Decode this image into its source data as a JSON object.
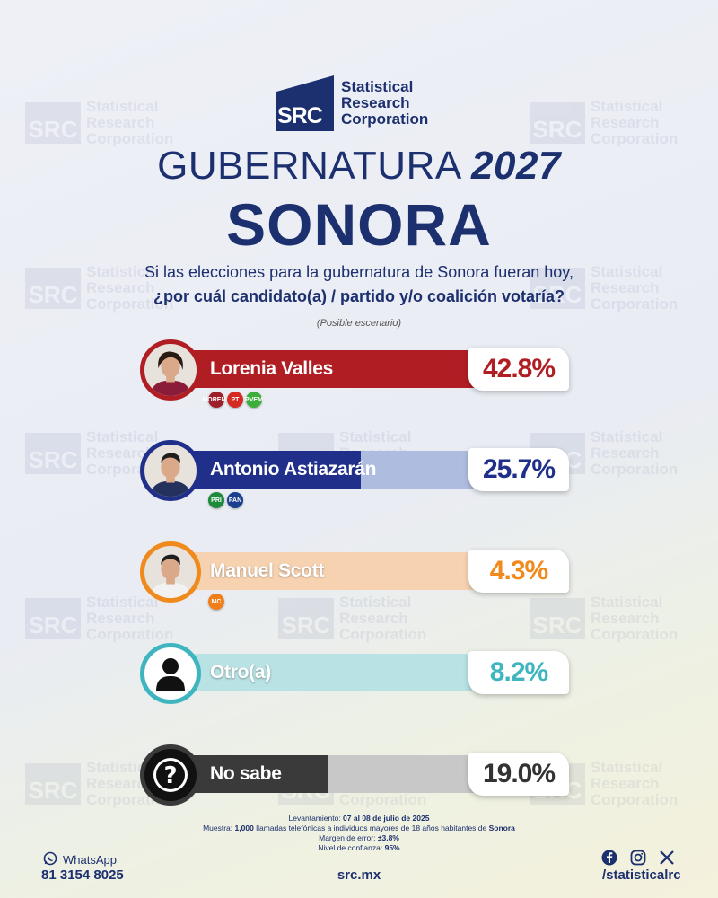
{
  "brand": {
    "logo_initials": "SRC",
    "name_lines": [
      "Statistical",
      "Research",
      "Corporation"
    ],
    "accent_color": "#1c2f6e"
  },
  "header": {
    "title_prefix": "GUBERNATURA",
    "title_year": "2027",
    "state": "SONORA",
    "question_line1": "Si las elecciones para la gubernatura de Sonora fueran hoy,",
    "question_line2": "¿por cuál candidato(a) / partido y/o coalición votaría?",
    "scenario": "(Posible escenario)"
  },
  "chart_data": {
    "type": "bar",
    "orientation": "horizontal",
    "categories": [
      "Lorenia Valles",
      "Antonio Astiazarán",
      "Manuel Scott",
      "Otro(a)",
      "No sabe"
    ],
    "values": [
      42.8,
      25.7,
      4.3,
      8.2,
      19.0
    ],
    "value_labels": [
      "42.8%",
      "25.7%",
      "4.3%",
      "8.2%",
      "19.0%"
    ],
    "colors": [
      "#b01e24",
      "#1f2f8a",
      "#f08a1c",
      "#3fb6bf",
      "#3a3a3a"
    ],
    "track_colors": [
      "#f0c4c6",
      "#aebcdf",
      "#f7d2b0",
      "#b8e2e4",
      "#c8c8c8"
    ],
    "value_colors": [
      "#b01e24",
      "#1f2f8a",
      "#f08a1c",
      "#3fb6bf",
      "#333333"
    ],
    "party_badges": [
      [
        "MORENA",
        "PT",
        "PVEM"
      ],
      [
        "PRI",
        "PAN"
      ],
      [
        "MC"
      ],
      [],
      []
    ],
    "badge_colors": [
      [
        "#9c1f2a",
        "#d42a22",
        "#3cae3c"
      ],
      [
        "#1d8a3c",
        "#1b3f8f"
      ],
      [
        "#f07f1a"
      ],
      [],
      []
    ],
    "icons": [
      "candidate-photo",
      "candidate-photo",
      "candidate-photo",
      "person-icon",
      "question-icon"
    ],
    "xlim": [
      0,
      100
    ]
  },
  "footnotes": {
    "fieldwork_label": "Levantamiento:",
    "fieldwork_value": "07 al 08 de julio de 2025",
    "sample_label": "Muestra:",
    "sample_value_pre": "1,000",
    "sample_value_mid": "llamadas telefónicas a individuos mayores de 18 años habitantes de",
    "sample_value_state": "Sonora",
    "margin_label": "Margen de error:",
    "margin_value": "±3.8%",
    "confidence_label": "Nivel de confianza:",
    "confidence_value": "95%"
  },
  "footer": {
    "whatsapp_label": "WhatsApp",
    "phone": "81 3154 8025",
    "website": "src.mx",
    "social_handle": "/statisticalrc",
    "social_icons": [
      "facebook-icon",
      "instagram-icon",
      "x-icon"
    ]
  }
}
